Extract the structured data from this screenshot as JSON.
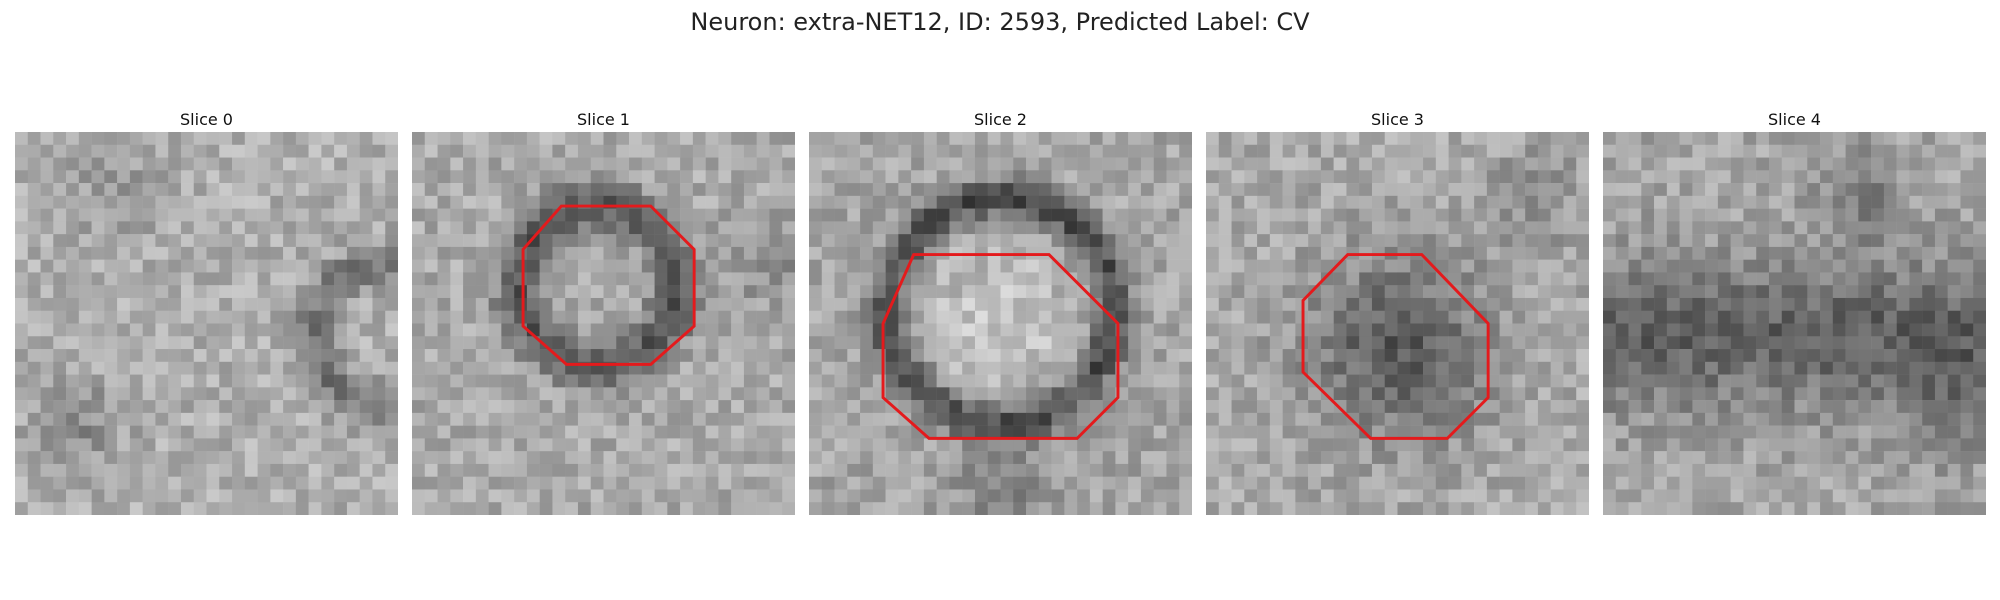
{
  "figure": {
    "title": "Neuron: extra-NET12, ID: 2593, Predicted Label: CV"
  },
  "colors": {
    "outline": "#e41a1c",
    "background": "#ffffff"
  },
  "panels": [
    {
      "title": "Slice 0",
      "has_outline": false
    },
    {
      "title": "Slice 1",
      "has_outline": true
    },
    {
      "title": "Slice 2",
      "has_outline": true
    },
    {
      "title": "Slice 3",
      "has_outline": true
    },
    {
      "title": "Slice 4",
      "has_outline": false
    }
  ]
}
